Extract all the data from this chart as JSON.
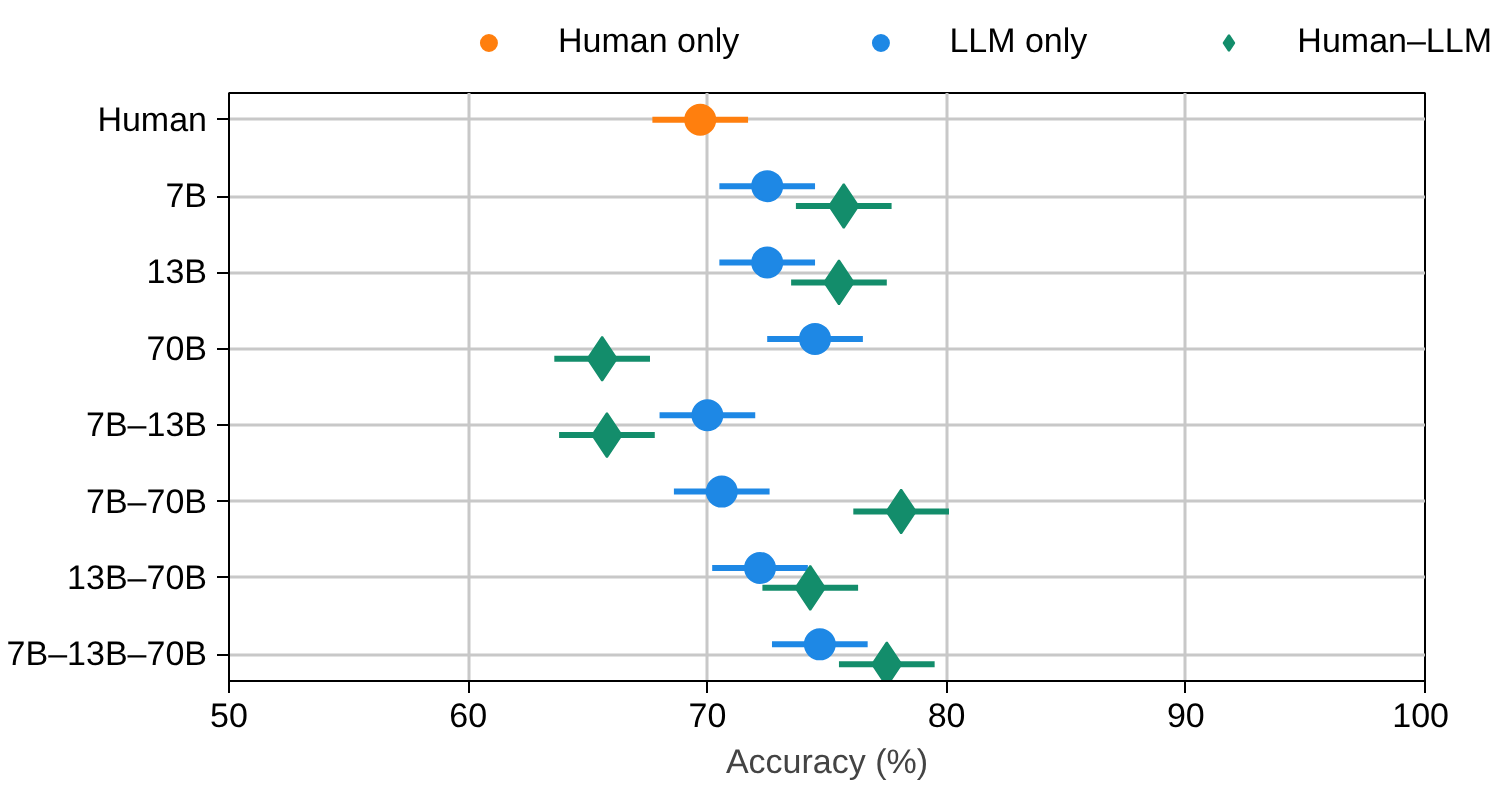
{
  "chart_data": {
    "type": "scatter",
    "orientation": "horizontal",
    "xlabel": "Accuracy (%)",
    "categories": [
      "Human",
      "7B",
      "13B",
      "70B",
      "7B–13B",
      "7B–70B",
      "13B–70B",
      "7B–13B–70B"
    ],
    "xlim": [
      50,
      100
    ],
    "xticks": [
      50,
      60,
      70,
      80,
      90,
      100
    ],
    "grid": true,
    "legend": "top",
    "series": [
      {
        "name": "Human only",
        "color": "#ff7f0e",
        "marker": "circle",
        "values": [
          69.7,
          null,
          null,
          null,
          null,
          null,
          null,
          null
        ],
        "errors": [
          2.0,
          null,
          null,
          null,
          null,
          null,
          null,
          null
        ]
      },
      {
        "name": "LLM only",
        "color": "#1e88e5",
        "marker": "circle",
        "values": [
          null,
          72.5,
          72.5,
          74.5,
          70.0,
          70.6,
          72.2,
          74.7
        ],
        "errors": [
          null,
          2.0,
          2.0,
          2.0,
          2.0,
          2.0,
          2.0,
          2.0
        ]
      },
      {
        "name": "Human–LLM",
        "color": "#138d6b",
        "marker": "diamond",
        "values": [
          null,
          75.7,
          75.5,
          65.6,
          65.8,
          78.1,
          74.3,
          77.5
        ],
        "errors": [
          null,
          2.0,
          2.0,
          2.0,
          2.0,
          2.0,
          2.0,
          2.0
        ]
      }
    ]
  }
}
